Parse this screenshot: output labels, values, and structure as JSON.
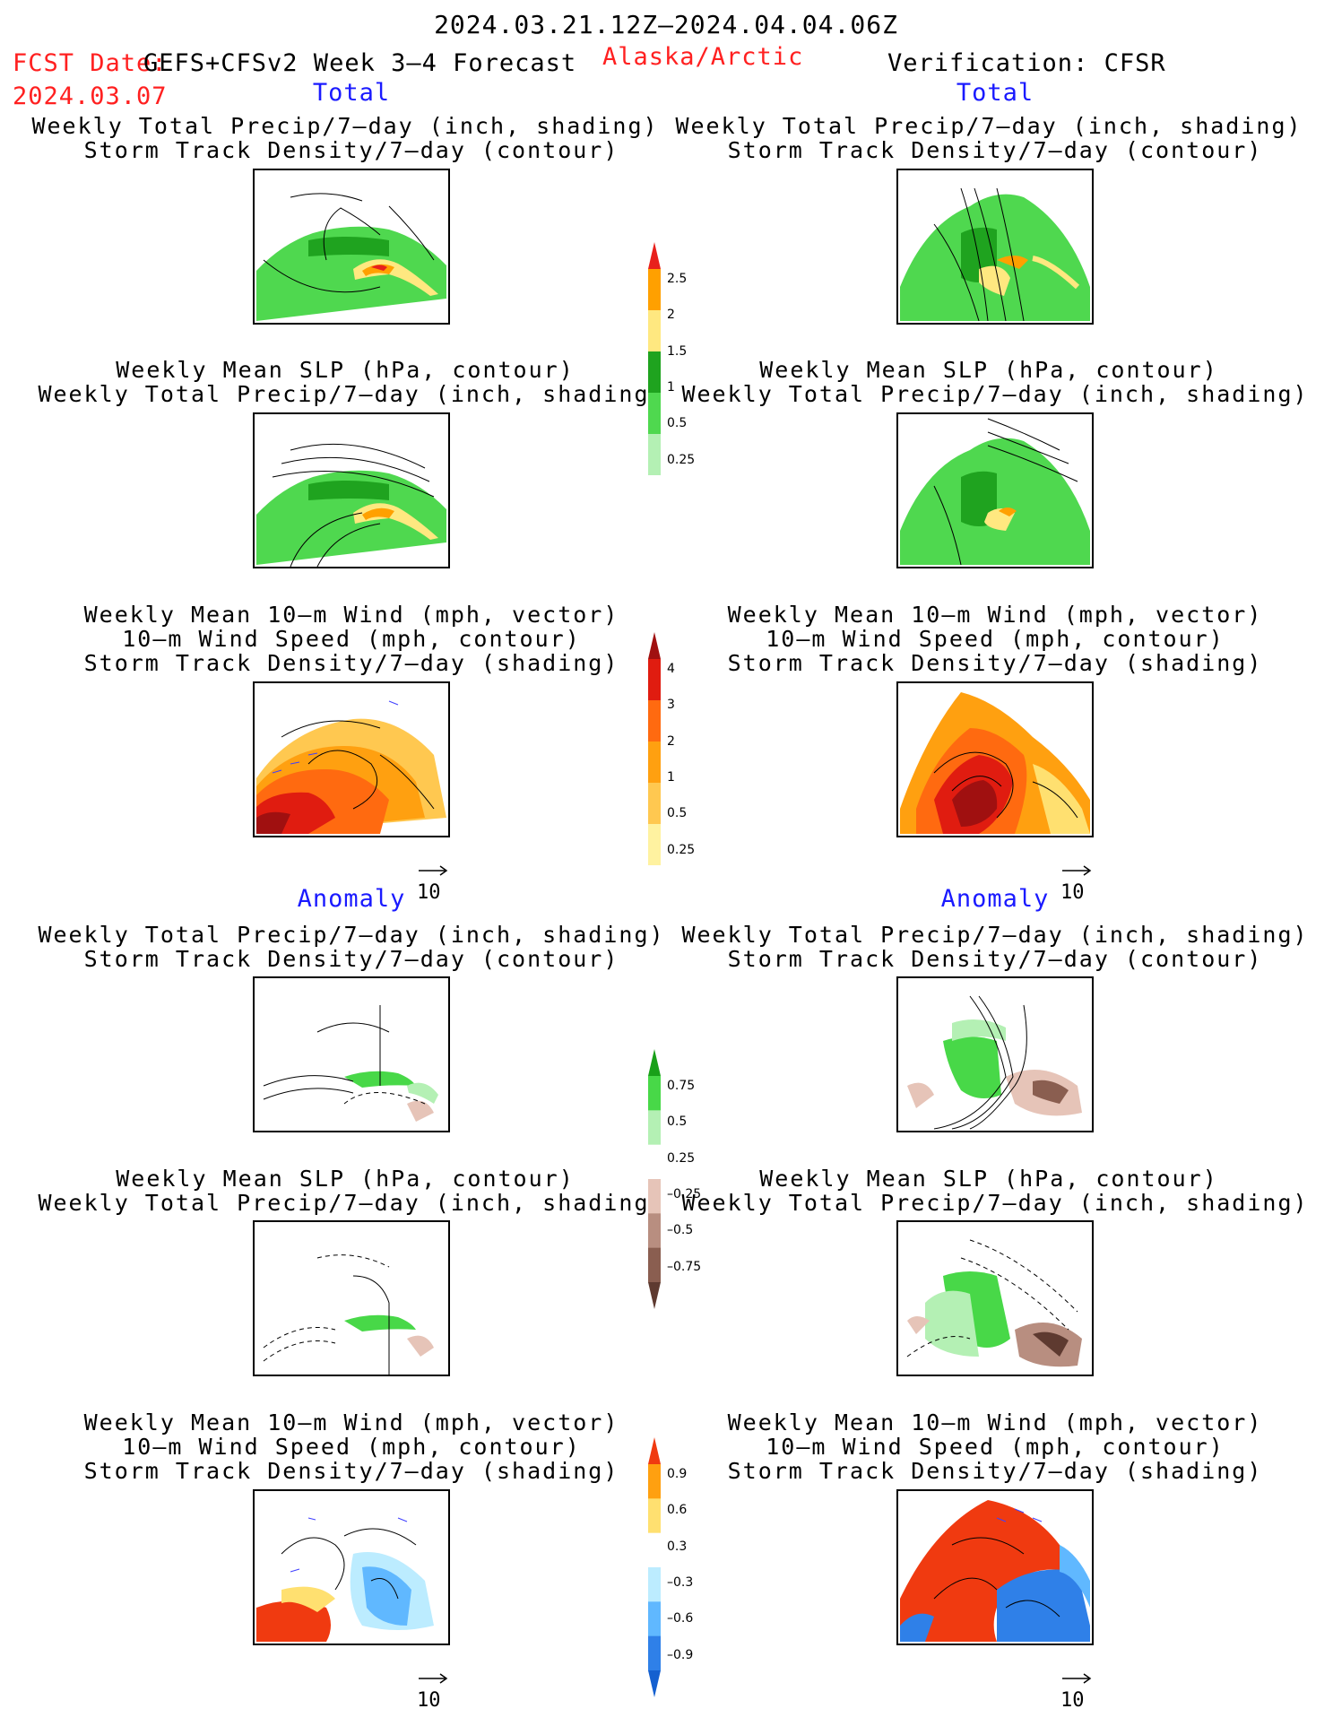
{
  "header": {
    "period": "2024.03.21.12Z–2024.04.04.06Z",
    "fcst_label": "FCST Date:",
    "product": "GEFS+CFSv2 Week 3–4 Forecast",
    "fcst_date": "2024.03.07",
    "region": "Alaska/Arctic",
    "verification": "Verification: CFSR"
  },
  "sections": {
    "total": "Total",
    "anomaly": "Anomaly"
  },
  "titles": {
    "precip_track_1": "Weekly Total Precip/7–day (inch, shading)",
    "precip_track_2": "Storm Track Density/7–day (contour)",
    "slp_precip_1": "Weekly Mean SLP (hPa, contour)",
    "slp_precip_2": "Weekly Total Precip/7–day (inch, shading)",
    "wind_1": "Weekly Mean 10–m Wind (mph, vector)",
    "wind_2": "10–m Wind Speed (mph, contour)",
    "wind_3": "Storm Track Density/7–day (shading)"
  },
  "vector_ref": "10",
  "colorbars": {
    "precip_total": {
      "labels": [
        "2.5",
        "2",
        "1.5",
        "1",
        "0.5",
        "0.25"
      ],
      "colors": [
        "#e8201c",
        "#ffa000",
        "#ffe880",
        "#1fa31f",
        "#4fd84f",
        "#b4f0b4"
      ]
    },
    "track_total": {
      "labels": [
        "4",
        "3",
        "2",
        "1",
        "0.5",
        "0.25"
      ],
      "colors": [
        "#a01010",
        "#e01c10",
        "#ff6a10",
        "#ffa010",
        "#ffc850",
        "#fff2a0"
      ]
    },
    "precip_anom": {
      "labels": [
        "0.75",
        "0.5",
        "0.25",
        "–0.25",
        "–0.5",
        "–0.75"
      ],
      "colors": [
        "#19a019",
        "#48d848",
        "#b4f0b4",
        "#ffffff",
        "#e6c4b8",
        "#b88e80",
        "#8a5e50",
        "#5e3a30"
      ]
    },
    "track_anom": {
      "labels": [
        "0.9",
        "0.6",
        "0.3",
        "–0.3",
        "–0.6",
        "–0.9"
      ],
      "colors": [
        "#f03a10",
        "#ffa010",
        "#ffe070",
        "#ffffff",
        "#bcecff",
        "#60b8ff",
        "#2f80e8",
        "#1460d0"
      ]
    }
  }
}
